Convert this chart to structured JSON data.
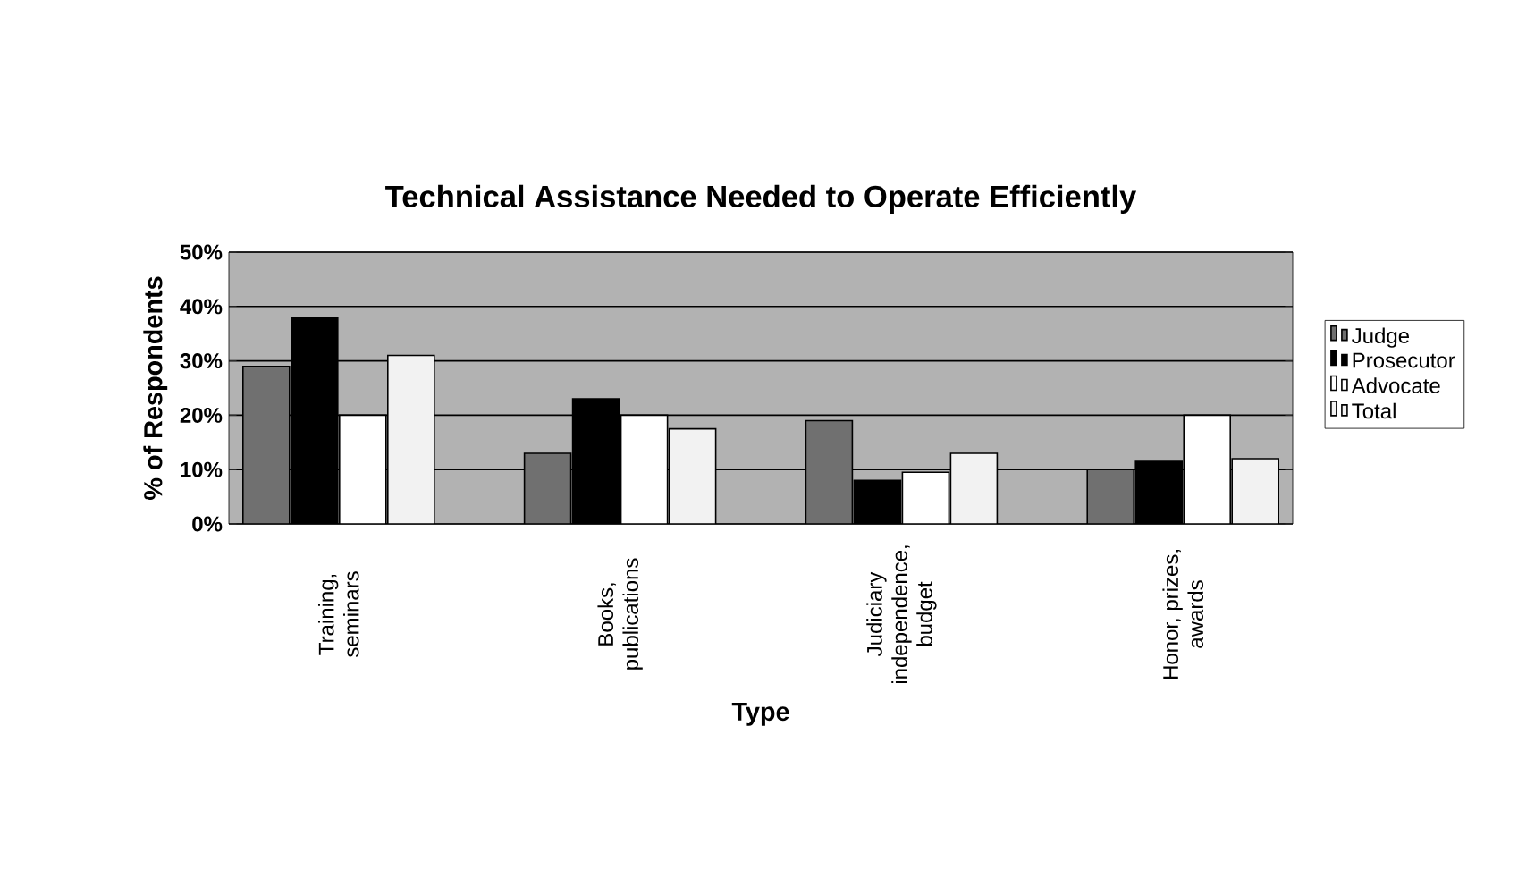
{
  "chart_data": {
    "type": "bar",
    "title": "Technical Assistance Needed to Operate Efficiently",
    "xlabel": "Type",
    "ylabel": "% of Respondents",
    "categories": [
      "Training, seminars",
      "Books, publications",
      "Judiciary independence, budget",
      "Honor, prizes, awards"
    ],
    "series": [
      {
        "name": "Judge",
        "color": "#707070",
        "values": [
          29,
          13,
          19,
          10
        ]
      },
      {
        "name": "Prosecutor",
        "color": "#000000",
        "values": [
          38,
          23,
          8,
          11.5
        ]
      },
      {
        "name": "Advocate",
        "color": "#ffffff",
        "values": [
          20,
          20,
          9.5,
          20
        ]
      },
      {
        "name": "Total",
        "color": "#f2f2f2",
        "values": [
          31,
          17.5,
          13,
          12
        ]
      }
    ],
    "ylim": [
      0,
      50
    ],
    "yticks": [
      {
        "value": 0,
        "label": "0%"
      },
      {
        "value": 10,
        "label": "10%"
      },
      {
        "value": 20,
        "label": "20%"
      },
      {
        "value": 30,
        "label": "30%"
      },
      {
        "value": 40,
        "label": "40%"
      },
      {
        "value": 50,
        "label": "50%"
      }
    ],
    "grid": "y",
    "legend": "right"
  }
}
